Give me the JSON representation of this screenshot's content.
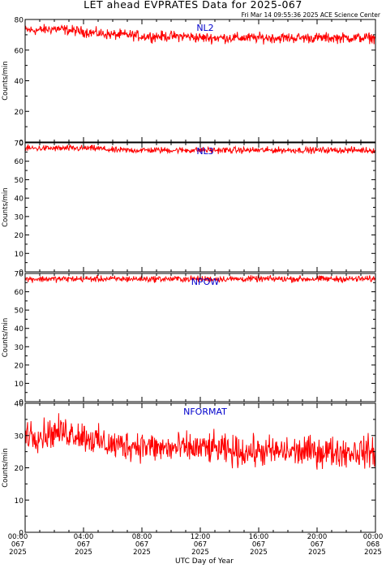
{
  "title": "LET ahead EVPRATES Data for 2025-067",
  "timestamp": "Fri Mar 14 09:55:36 2025 ACE Science Center",
  "xlabel": "UTC Day of Year",
  "ylabel": "Counts/min",
  "x_ticks": [
    {
      "time": "00:00",
      "doy": "067",
      "year": "2025"
    },
    {
      "time": "04:00",
      "doy": "067",
      "year": "2025"
    },
    {
      "time": "08:00",
      "doy": "067",
      "year": "2025"
    },
    {
      "time": "12:00",
      "doy": "067",
      "year": "2025"
    },
    {
      "time": "16:00",
      "doy": "067",
      "year": "2025"
    },
    {
      "time": "20:00",
      "doy": "067",
      "year": "2025"
    },
    {
      "time": "00:00",
      "doy": "068",
      "year": "2025"
    }
  ],
  "colors": {
    "data": "#ff0000",
    "panel_label": "#0000cc",
    "axis": "#000000"
  },
  "chart_data": [
    {
      "type": "line",
      "series_label": "NL2",
      "x_unit": "hours UTC, day 067",
      "xlim": [
        0,
        24
      ],
      "ylim": [
        0,
        80
      ],
      "yticks": [
        0,
        20,
        40,
        60,
        80
      ],
      "x": [
        0,
        1,
        2,
        3,
        4,
        5,
        6,
        7,
        8,
        9,
        10,
        11,
        12,
        13,
        14,
        15,
        16,
        17,
        18,
        19,
        20,
        21,
        22,
        23,
        24
      ],
      "values": [
        73,
        73,
        74,
        73,
        72,
        71,
        70,
        70,
        69,
        69,
        69,
        69,
        68,
        68,
        68,
        68,
        68,
        68,
        68,
        68,
        68,
        68,
        68,
        68,
        68
      ],
      "noise_range": 5
    },
    {
      "type": "line",
      "series_label": "NL3",
      "x_unit": "hours UTC, day 067",
      "xlim": [
        0,
        24
      ],
      "ylim": [
        0,
        70
      ],
      "yticks": [
        0,
        10,
        20,
        30,
        40,
        50,
        60,
        70
      ],
      "x": [
        0,
        1,
        2,
        3,
        4,
        5,
        6,
        7,
        8,
        9,
        10,
        11,
        12,
        13,
        14,
        15,
        16,
        17,
        18,
        19,
        20,
        21,
        22,
        23,
        24
      ],
      "values": [
        67,
        67,
        67,
        67,
        67,
        67,
        66,
        66,
        66,
        66,
        66,
        66,
        66,
        66,
        66,
        66,
        66,
        66,
        66,
        66,
        66,
        66,
        66,
        66,
        66
      ],
      "noise_range": 2.5
    },
    {
      "type": "line",
      "series_label": "NPOW",
      "x_unit": "hours UTC, day 067",
      "xlim": [
        0,
        24
      ],
      "ylim": [
        0,
        70
      ],
      "yticks": [
        0,
        10,
        20,
        30,
        40,
        50,
        60,
        70
      ],
      "x": [
        0,
        1,
        2,
        3,
        4,
        5,
        6,
        7,
        8,
        9,
        10,
        11,
        12,
        13,
        14,
        15,
        16,
        17,
        18,
        19,
        20,
        21,
        22,
        23,
        24
      ],
      "values": [
        67,
        67,
        67,
        67,
        67,
        67,
        67,
        67,
        67,
        67,
        67,
        67,
        67,
        67,
        67,
        67,
        67,
        67,
        67,
        67,
        67,
        67,
        67,
        67,
        67
      ],
      "noise_range": 2.5
    },
    {
      "type": "line",
      "series_label": "NFORMAT",
      "x_unit": "hours UTC, day 067",
      "xlim": [
        0,
        24
      ],
      "ylim": [
        0,
        40
      ],
      "yticks": [
        0,
        10,
        20,
        30,
        40
      ],
      "x": [
        0,
        1,
        2,
        3,
        4,
        5,
        6,
        7,
        8,
        9,
        10,
        11,
        12,
        13,
        14,
        15,
        16,
        17,
        18,
        19,
        20,
        21,
        22,
        23,
        24
      ],
      "values": [
        31,
        30,
        31,
        31,
        30,
        28,
        27,
        27,
        27,
        26,
        26,
        26,
        26,
        26,
        25,
        25,
        25,
        25,
        25,
        25,
        25,
        25,
        25,
        25,
        25
      ],
      "noise_range": 7
    }
  ]
}
